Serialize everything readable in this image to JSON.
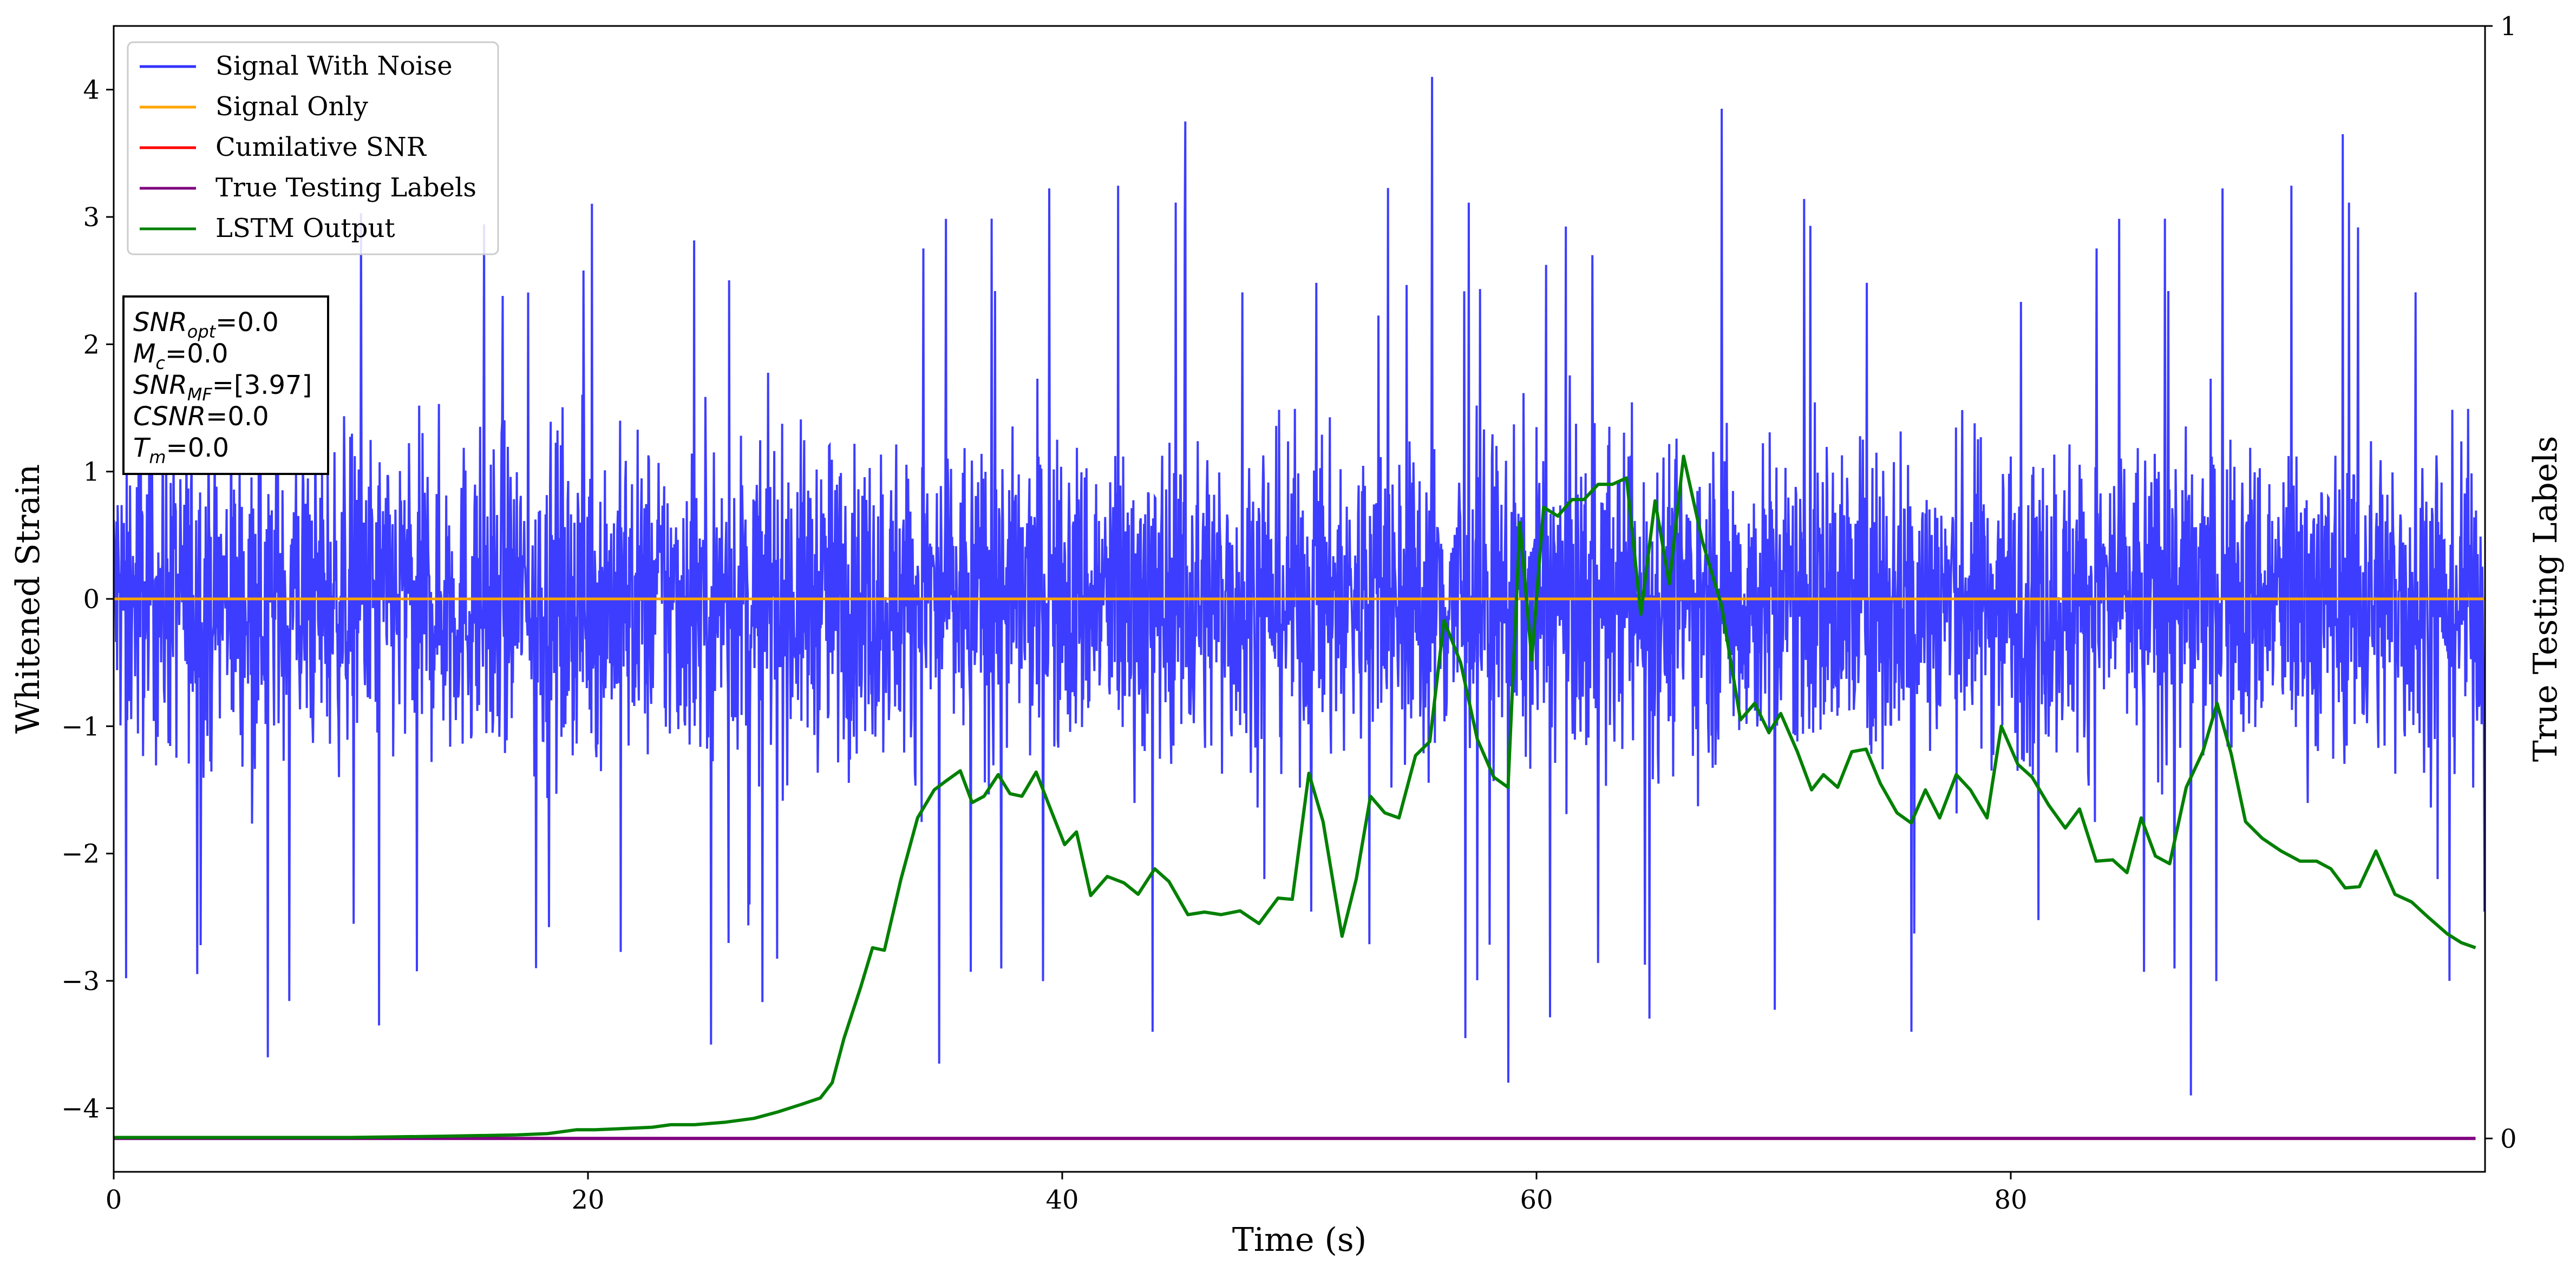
{
  "chart_data": {
    "type": "line",
    "xlabel": "Time (s)",
    "ylabel": "Whitened Strain",
    "y2label": "True Testing Labels",
    "xlim": [
      0,
      100
    ],
    "ylim": [
      -4.5,
      4.5
    ],
    "y2lim": [
      -0.03,
      1
    ],
    "xticks": [
      0,
      20,
      40,
      60,
      80
    ],
    "yticks": [
      -4,
      -3,
      -2,
      -1,
      0,
      1,
      2,
      3,
      4
    ],
    "y2ticks": [
      0,
      1
    ],
    "grid": false,
    "legend_position": "top-left",
    "colors": {
      "signal_with_noise": "#3333ff",
      "signal_only": "#ffa500",
      "cumulative_snr": "#ff0000",
      "true_testing_labels": "#800080",
      "lstm_output": "#008000"
    },
    "legend": [
      "Signal With Noise",
      "Signal Only",
      "Cumilative SNR",
      "True Testing Labels",
      "LSTM Output"
    ],
    "annotation": {
      "lines": [
        {
          "base": "SNR",
          "sub": "opt",
          "value": "=0.0"
        },
        {
          "base": "M",
          "sub": "c",
          "value": "=0.0"
        },
        {
          "base": "SNR",
          "sub": "MF",
          "value": "=[3.97]"
        },
        {
          "base": "CSNR",
          "sub": "",
          "value": "=0.0"
        },
        {
          "base": "T",
          "sub": "m",
          "value": "=0.0"
        }
      ]
    },
    "series": [
      {
        "name": "Signal With Noise",
        "axis": "left",
        "style": "dense noise, roughly within -2.6 to 2.6 with spikes",
        "spikes": [
          [
            6.5,
            -3.6
          ],
          [
            11.2,
            -3.35
          ],
          [
            17.8,
            -2.9
          ],
          [
            25.2,
            -3.5
          ],
          [
            34.8,
            -3.65
          ],
          [
            43.8,
            -3.4
          ],
          [
            55.6,
            4.1
          ],
          [
            57.0,
            -3.45
          ],
          [
            58.8,
            -3.8
          ],
          [
            67.8,
            3.85
          ],
          [
            75.8,
            -3.4
          ],
          [
            87.6,
            -3.9
          ],
          [
            94.0,
            3.65
          ],
          [
            98.5,
            -3.0
          ],
          [
            45.2,
            3.75
          ]
        ]
      },
      {
        "name": "Signal Only",
        "axis": "left",
        "points": [
          [
            0,
            0
          ],
          [
            100,
            0
          ]
        ]
      },
      {
        "name": "True Testing Labels",
        "axis": "right",
        "points": [
          [
            0,
            0
          ],
          [
            99.6,
            0
          ]
        ]
      },
      {
        "name": "LSTM Output",
        "axis": "left",
        "points": [
          [
            0,
            -4.23
          ],
          [
            10,
            -4.23
          ],
          [
            14,
            -4.22
          ],
          [
            17,
            -4.21
          ],
          [
            18.3,
            -4.2
          ],
          [
            19.5,
            -4.17
          ],
          [
            20.3,
            -4.17
          ],
          [
            21.5,
            -4.16
          ],
          [
            22.7,
            -4.15
          ],
          [
            23.5,
            -4.13
          ],
          [
            24.5,
            -4.13
          ],
          [
            25.8,
            -4.11
          ],
          [
            27,
            -4.08
          ],
          [
            28,
            -4.03
          ],
          [
            29,
            -3.97
          ],
          [
            29.8,
            -3.92
          ],
          [
            30.3,
            -3.8
          ],
          [
            30.8,
            -3.45
          ],
          [
            31.5,
            -3.05
          ],
          [
            32.0,
            -2.74
          ],
          [
            32.5,
            -2.76
          ],
          [
            33.2,
            -2.2
          ],
          [
            33.9,
            -1.72
          ],
          [
            34.6,
            -1.5
          ],
          [
            35.1,
            -1.43
          ],
          [
            35.7,
            -1.35
          ],
          [
            36.2,
            -1.6
          ],
          [
            36.7,
            -1.55
          ],
          [
            37.3,
            -1.38
          ],
          [
            37.8,
            -1.53
          ],
          [
            38.3,
            -1.55
          ],
          [
            38.9,
            -1.36
          ],
          [
            39.4,
            -1.6
          ],
          [
            40.1,
            -1.93
          ],
          [
            40.6,
            -1.83
          ],
          [
            41.2,
            -2.33
          ],
          [
            41.9,
            -2.18
          ],
          [
            42.6,
            -2.23
          ],
          [
            43.2,
            -2.32
          ],
          [
            43.9,
            -2.12
          ],
          [
            44.5,
            -2.22
          ],
          [
            45.3,
            -2.48
          ],
          [
            46.0,
            -2.46
          ],
          [
            46.7,
            -2.48
          ],
          [
            47.5,
            -2.45
          ],
          [
            48.3,
            -2.55
          ],
          [
            49.1,
            -2.35
          ],
          [
            49.7,
            -2.36
          ],
          [
            50.4,
            -1.37
          ],
          [
            51.0,
            -1.75
          ],
          [
            51.8,
            -2.65
          ],
          [
            52.4,
            -2.2
          ],
          [
            53.0,
            -1.55
          ],
          [
            53.6,
            -1.68
          ],
          [
            54.2,
            -1.72
          ],
          [
            54.9,
            -1.23
          ],
          [
            55.5,
            -1.12
          ],
          [
            56.1,
            -0.17
          ],
          [
            56.8,
            -0.5
          ],
          [
            57.5,
            -1.1
          ],
          [
            58.2,
            -1.4
          ],
          [
            58.8,
            -1.48
          ],
          [
            59.3,
            0.6
          ],
          [
            59.8,
            -0.48
          ],
          [
            60.3,
            0.72
          ],
          [
            60.9,
            0.65
          ],
          [
            61.5,
            0.78
          ],
          [
            62.0,
            0.78
          ],
          [
            62.6,
            0.9
          ],
          [
            63.2,
            0.9
          ],
          [
            63.8,
            0.95
          ],
          [
            64.4,
            -0.12
          ],
          [
            65.0,
            0.77
          ],
          [
            65.6,
            0.12
          ],
          [
            66.2,
            1.12
          ],
          [
            67.0,
            0.45
          ],
          [
            67.8,
            -0.05
          ],
          [
            68.6,
            -0.95
          ],
          [
            69.2,
            -0.82
          ],
          [
            69.8,
            -1.05
          ],
          [
            70.3,
            -0.9
          ],
          [
            71.0,
            -1.2
          ],
          [
            71.6,
            -1.5
          ],
          [
            72.1,
            -1.38
          ],
          [
            72.7,
            -1.48
          ],
          [
            73.3,
            -1.2
          ],
          [
            73.9,
            -1.18
          ],
          [
            74.5,
            -1.45
          ],
          [
            75.2,
            -1.68
          ],
          [
            75.8,
            -1.76
          ],
          [
            76.4,
            -1.5
          ],
          [
            77.0,
            -1.72
          ],
          [
            77.7,
            -1.38
          ],
          [
            78.3,
            -1.5
          ],
          [
            79.0,
            -1.72
          ],
          [
            79.6,
            -1.0
          ],
          [
            80.3,
            -1.3
          ],
          [
            80.9,
            -1.4
          ],
          [
            81.6,
            -1.62
          ],
          [
            82.3,
            -1.8
          ],
          [
            82.9,
            -1.65
          ],
          [
            83.6,
            -2.06
          ],
          [
            84.3,
            -2.05
          ],
          [
            84.9,
            -2.15
          ],
          [
            85.5,
            -1.72
          ],
          [
            86.1,
            -2.02
          ],
          [
            86.7,
            -2.08
          ],
          [
            87.4,
            -1.48
          ],
          [
            88.1,
            -1.2
          ],
          [
            88.7,
            -0.82
          ],
          [
            89.3,
            -1.22
          ],
          [
            89.9,
            -1.75
          ],
          [
            90.6,
            -1.88
          ],
          [
            91.4,
            -1.98
          ],
          [
            92.2,
            -2.06
          ],
          [
            92.9,
            -2.06
          ],
          [
            93.5,
            -2.12
          ],
          [
            94.1,
            -2.27
          ],
          [
            94.7,
            -2.26
          ],
          [
            95.4,
            -1.98
          ],
          [
            96.2,
            -2.32
          ],
          [
            96.9,
            -2.38
          ],
          [
            97.6,
            -2.5
          ],
          [
            98.4,
            -2.63
          ],
          [
            99.0,
            -2.7
          ],
          [
            99.6,
            -2.74
          ]
        ]
      }
    ]
  }
}
